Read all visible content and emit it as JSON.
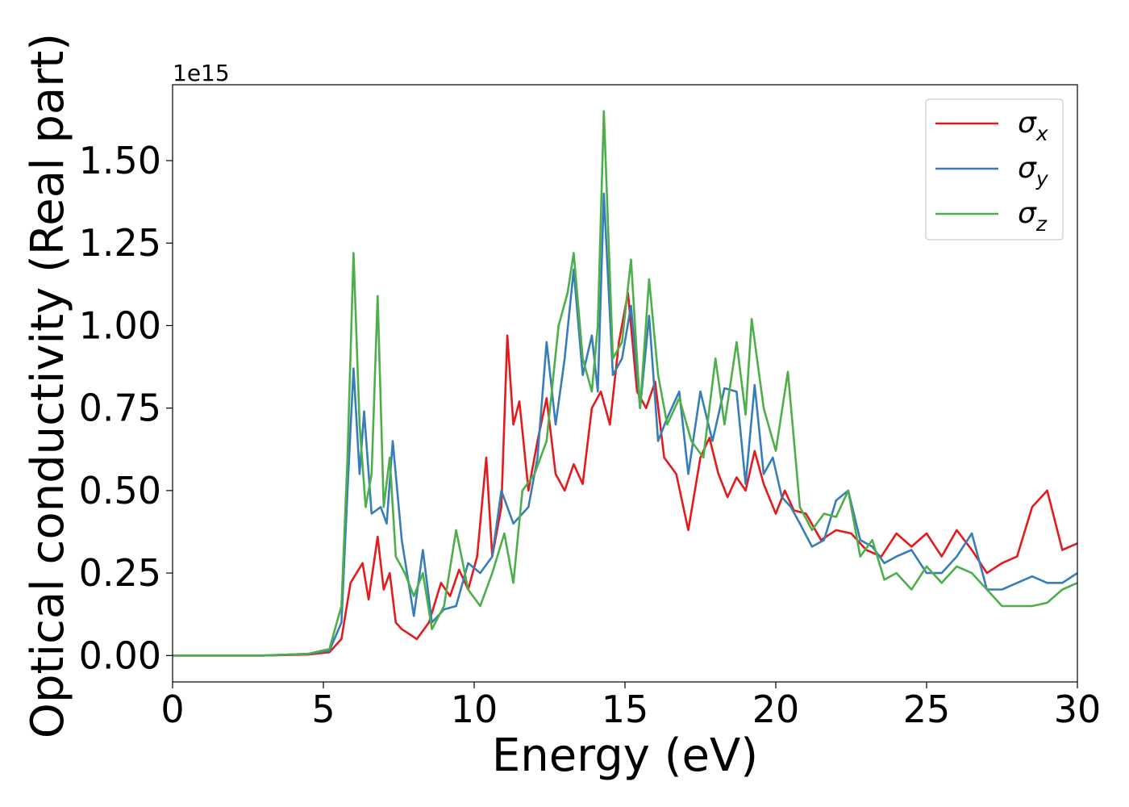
{
  "chart_data": {
    "type": "line",
    "xlabel": "Energy (eV)",
    "ylabel": "Optical conductivity (Real part)",
    "y_offset_text": "1e15",
    "xlim": [
      0,
      30
    ],
    "ylim": [
      -0.08,
      1.73
    ],
    "x_ticks": [
      0,
      5,
      10,
      15,
      20,
      25,
      30
    ],
    "x_tick_labels": [
      "0",
      "5",
      "10",
      "15",
      "20",
      "25",
      "30"
    ],
    "y_ticks": [
      0,
      0.25,
      0.5,
      0.75,
      1.0,
      1.25,
      1.5
    ],
    "y_tick_labels": [
      "0.00",
      "0.25",
      "0.50",
      "0.75",
      "1.00",
      "1.25",
      "1.50"
    ],
    "grid": false,
    "legend_position": "top-right",
    "series": [
      {
        "name": "σx",
        "legend_base": "σ",
        "legend_sub": "x",
        "color": "#e41a1c",
        "x": [
          0,
          3,
          4.5,
          5.2,
          5.6,
          5.9,
          6.1,
          6.3,
          6.5,
          6.8,
          7.0,
          7.2,
          7.4,
          7.6,
          8.1,
          8.5,
          8.9,
          9.2,
          9.5,
          9.8,
          10.1,
          10.4,
          10.6,
          10.9,
          11.1,
          11.3,
          11.5,
          11.8,
          12.1,
          12.4,
          12.7,
          13.0,
          13.3,
          13.6,
          13.9,
          14.2,
          14.5,
          14.8,
          15.1,
          15.4,
          15.7,
          16.0,
          16.3,
          16.7,
          17.1,
          17.5,
          17.8,
          18.1,
          18.4,
          18.7,
          19.0,
          19.3,
          19.6,
          20.0,
          20.3,
          20.6,
          21.0,
          21.5,
          22.0,
          22.5,
          23.0,
          23.5,
          24.0,
          24.5,
          25.0,
          25.5,
          26.0,
          26.5,
          27.0,
          27.5,
          28.0,
          28.5,
          29.0,
          29.5,
          30.0
        ],
        "y": [
          0,
          0,
          0.003,
          0.01,
          0.05,
          0.22,
          0.25,
          0.28,
          0.17,
          0.36,
          0.2,
          0.25,
          0.1,
          0.08,
          0.05,
          0.1,
          0.22,
          0.18,
          0.26,
          0.2,
          0.3,
          0.6,
          0.3,
          0.45,
          0.97,
          0.7,
          0.77,
          0.5,
          0.65,
          0.78,
          0.55,
          0.5,
          0.58,
          0.52,
          0.75,
          0.8,
          0.7,
          0.95,
          1.1,
          0.8,
          0.75,
          0.83,
          0.6,
          0.55,
          0.38,
          0.6,
          0.66,
          0.55,
          0.48,
          0.54,
          0.5,
          0.62,
          0.52,
          0.43,
          0.5,
          0.44,
          0.43,
          0.35,
          0.38,
          0.37,
          0.32,
          0.3,
          0.37,
          0.33,
          0.37,
          0.3,
          0.38,
          0.32,
          0.25,
          0.28,
          0.3,
          0.45,
          0.5,
          0.32,
          0.34
        ]
      },
      {
        "name": "σy",
        "legend_base": "σ",
        "legend_sub": "y",
        "color": "#377eb8",
        "x": [
          0,
          3,
          4.5,
          5.2,
          5.6,
          5.8,
          6.0,
          6.2,
          6.35,
          6.6,
          6.9,
          7.1,
          7.3,
          7.6,
          8.0,
          8.3,
          8.6,
          9.0,
          9.4,
          9.8,
          10.2,
          10.6,
          10.9,
          11.3,
          11.8,
          12.1,
          12.4,
          12.7,
          13.0,
          13.3,
          13.6,
          13.9,
          14.1,
          14.3,
          14.6,
          14.9,
          15.2,
          15.5,
          15.8,
          16.1,
          16.4,
          16.8,
          17.1,
          17.5,
          17.9,
          18.3,
          18.7,
          19.0,
          19.3,
          19.6,
          19.9,
          20.2,
          20.5,
          20.8,
          21.2,
          21.6,
          22.0,
          22.4,
          22.8,
          23.2,
          23.6,
          24.0,
          24.5,
          25.0,
          25.5,
          26.0,
          26.5,
          27.0,
          27.5,
          28.0,
          28.5,
          29.0,
          29.5,
          30.0
        ],
        "y": [
          0,
          0,
          0.005,
          0.015,
          0.1,
          0.5,
          0.87,
          0.55,
          0.74,
          0.43,
          0.45,
          0.4,
          0.65,
          0.35,
          0.12,
          0.32,
          0.1,
          0.14,
          0.15,
          0.28,
          0.25,
          0.3,
          0.5,
          0.4,
          0.45,
          0.6,
          0.95,
          0.7,
          0.9,
          1.17,
          0.85,
          0.97,
          0.8,
          1.4,
          0.85,
          0.9,
          1.06,
          0.75,
          1.03,
          0.65,
          0.72,
          0.8,
          0.55,
          0.8,
          0.65,
          0.81,
          0.8,
          0.52,
          0.82,
          0.55,
          0.6,
          0.48,
          0.45,
          0.4,
          0.33,
          0.35,
          0.47,
          0.5,
          0.35,
          0.33,
          0.28,
          0.3,
          0.32,
          0.25,
          0.25,
          0.3,
          0.37,
          0.2,
          0.2,
          0.22,
          0.24,
          0.22,
          0.22,
          0.25
        ]
      },
      {
        "name": "σz",
        "legend_base": "σ",
        "legend_sub": "z",
        "color": "#4daf4a",
        "x": [
          0,
          3,
          4.5,
          5.2,
          5.6,
          5.8,
          6.0,
          6.2,
          6.4,
          6.6,
          6.8,
          7.0,
          7.2,
          7.4,
          7.7,
          8.0,
          8.3,
          8.6,
          9.0,
          9.4,
          9.8,
          10.2,
          10.6,
          11.0,
          11.3,
          11.6,
          12.0,
          12.4,
          12.8,
          13.1,
          13.3,
          13.6,
          13.9,
          14.1,
          14.3,
          14.6,
          14.9,
          15.2,
          15.5,
          15.8,
          16.1,
          16.4,
          16.8,
          17.2,
          17.6,
          18.0,
          18.3,
          18.7,
          19.0,
          19.2,
          19.6,
          20.0,
          20.4,
          20.8,
          21.2,
          21.6,
          22.0,
          22.4,
          22.8,
          23.2,
          23.6,
          24.0,
          24.5,
          25.0,
          25.5,
          26.0,
          26.5,
          27.0,
          27.5,
          28.0,
          28.5,
          29.0,
          29.5,
          30.0
        ],
        "y": [
          0,
          0,
          0.005,
          0.02,
          0.15,
          0.6,
          1.22,
          0.7,
          0.45,
          0.55,
          1.09,
          0.45,
          0.6,
          0.3,
          0.25,
          0.18,
          0.25,
          0.08,
          0.15,
          0.38,
          0.2,
          0.15,
          0.25,
          0.37,
          0.22,
          0.5,
          0.55,
          0.65,
          1.0,
          1.1,
          1.22,
          0.9,
          0.8,
          1.0,
          1.65,
          0.9,
          0.95,
          1.2,
          0.75,
          1.14,
          0.85,
          0.7,
          0.78,
          0.65,
          0.6,
          0.9,
          0.7,
          0.95,
          0.73,
          1.02,
          0.75,
          0.62,
          0.86,
          0.45,
          0.38,
          0.43,
          0.42,
          0.5,
          0.3,
          0.35,
          0.23,
          0.25,
          0.2,
          0.27,
          0.22,
          0.27,
          0.25,
          0.2,
          0.15,
          0.15,
          0.15,
          0.16,
          0.2,
          0.22
        ]
      }
    ]
  }
}
